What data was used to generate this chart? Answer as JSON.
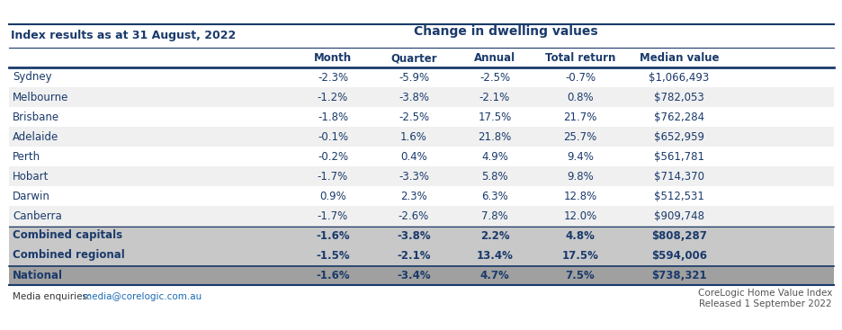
{
  "title_left": "Index results as at 31 August, 2022",
  "title_center": "Change in dwelling values",
  "col_headers": [
    "Month",
    "Quarter",
    "Annual",
    "Total return",
    "Median value"
  ],
  "rows": [
    {
      "city": "Sydney",
      "month": "-2.3%",
      "quarter": "-5.9%",
      "annual": "-2.5%",
      "total_return": "-0.7%",
      "median": "$1,066,493"
    },
    {
      "city": "Melbourne",
      "month": "-1.2%",
      "quarter": "-3.8%",
      "annual": "-2.1%",
      "total_return": "0.8%",
      "median": "$782,053"
    },
    {
      "city": "Brisbane",
      "month": "-1.8%",
      "quarter": "-2.5%",
      "annual": "17.5%",
      "total_return": "21.7%",
      "median": "$762,284"
    },
    {
      "city": "Adelaide",
      "month": "-0.1%",
      "quarter": "1.6%",
      "annual": "21.8%",
      "total_return": "25.7%",
      "median": "$652,959"
    },
    {
      "city": "Perth",
      "month": "-0.2%",
      "quarter": "0.4%",
      "annual": "4.9%",
      "total_return": "9.4%",
      "median": "$561,781"
    },
    {
      "city": "Hobart",
      "month": "-1.7%",
      "quarter": "-3.3%",
      "annual": "5.8%",
      "total_return": "9.8%",
      "median": "$714,370"
    },
    {
      "city": "Darwin",
      "month": "0.9%",
      "quarter": "2.3%",
      "annual": "6.3%",
      "total_return": "12.8%",
      "median": "$512,531"
    },
    {
      "city": "Canberra",
      "month": "-1.7%",
      "quarter": "-2.6%",
      "annual": "7.8%",
      "total_return": "12.0%",
      "median": "$909,748"
    }
  ],
  "summary_rows": [
    {
      "city": "Combined capitals",
      "month": "-1.6%",
      "quarter": "-3.8%",
      "annual": "2.2%",
      "total_return": "4.8%",
      "median": "$808,287",
      "bold": true
    },
    {
      "city": "Combined regional",
      "month": "-1.5%",
      "quarter": "-2.1%",
      "annual": "13.4%",
      "total_return": "17.5%",
      "median": "$594,006",
      "bold": true
    }
  ],
  "national_row": {
    "city": "National",
    "month": "-1.6%",
    "quarter": "-3.4%",
    "annual": "4.7%",
    "total_return": "7.5%",
    "median": "$738,321"
  },
  "footer_left": "Media enquiries: media@corelogic.com.au",
  "footer_right_line1": "CoreLogic Home Value Index",
  "footer_right_line2": "Released 1 September 2022",
  "color_header_bg": "#ffffff",
  "color_odd_row": "#ffffff",
  "color_even_row": "#f0f0f0",
  "color_summary_bg": "#c8c8c8",
  "color_national_bg": "#a0a0a0",
  "color_text_main": "#1a3a6b",
  "color_header_text": "#1a3a6b",
  "color_border": "#1a3a6b",
  "color_link": "#1a6bb5"
}
